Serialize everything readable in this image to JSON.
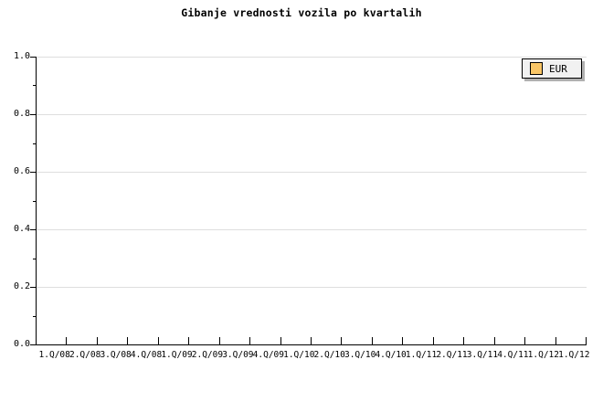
{
  "title": "Gibanje vrednosti vozila po kvartalih",
  "chart_data": {
    "type": "line",
    "title": "Gibanje vrednosti vozila po kvartalih",
    "categories": [
      "1.Q/08",
      "2.Q/08",
      "3.Q/08",
      "4.Q/08",
      "1.Q/09",
      "2.Q/09",
      "3.Q/09",
      "4.Q/09",
      "1.Q/10",
      "2.Q/10",
      "3.Q/10",
      "4.Q/10",
      "1.Q/11",
      "2.Q/11",
      "3.Q/11",
      "4.Q/11",
      "1.Q/12",
      "1.Q/12"
    ],
    "series": [
      {
        "name": "EUR",
        "color": "#f9c667",
        "values": []
      }
    ],
    "xlabel": "",
    "ylabel": "",
    "ylim": [
      0.0,
      1.0
    ],
    "y_major_ticks": [
      "1.0",
      "0.8",
      "0.6",
      "0.4",
      "0.2",
      "0.0"
    ],
    "y_minor_tick_values": [
      0.9,
      0.7,
      0.5,
      0.3,
      0.1
    ],
    "grid": "horizontal-on",
    "legend_position": "top-right",
    "plot_empty": true
  },
  "legend": {
    "label": "EUR",
    "swatch_color": "#f9c667"
  },
  "colors": {
    "background": "#ffffff",
    "axis": "#000000",
    "gridline": "#dedede",
    "legend_background": "#f1f1f1",
    "legend_shadow": "#b0b0b0",
    "text": "#000000"
  }
}
